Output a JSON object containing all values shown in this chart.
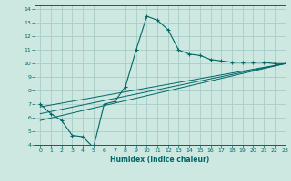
{
  "xlabel": "Humidex (Indice chaleur)",
  "ylabel": "",
  "bg_color": "#cce8e0",
  "grid_color": "#a8ccc8",
  "line_color": "#006666",
  "xlim": [
    -0.5,
    23
  ],
  "ylim": [
    4,
    14.3
  ],
  "xticks": [
    0,
    1,
    2,
    3,
    4,
    5,
    6,
    7,
    8,
    9,
    10,
    11,
    12,
    13,
    14,
    15,
    16,
    17,
    18,
    19,
    20,
    21,
    22,
    23
  ],
  "yticks": [
    4,
    5,
    6,
    7,
    8,
    9,
    10,
    11,
    12,
    13,
    14
  ],
  "line1_x": [
    0,
    1,
    2,
    3,
    4,
    5,
    6,
    7,
    8,
    9,
    10,
    11,
    12,
    13,
    14,
    15,
    16,
    17,
    18,
    19,
    20,
    21,
    22,
    23
  ],
  "line1_y": [
    7.0,
    6.3,
    5.8,
    4.7,
    4.6,
    3.8,
    7.0,
    7.2,
    8.3,
    11.0,
    13.5,
    13.2,
    12.5,
    11.0,
    10.7,
    10.6,
    10.3,
    10.2,
    10.1,
    10.1,
    10.1,
    10.1,
    10.0,
    10.0
  ],
  "line2_x": [
    0,
    23
  ],
  "line2_y": [
    5.8,
    10.0
  ],
  "line3_x": [
    0,
    23
  ],
  "line3_y": [
    6.3,
    10.0
  ],
  "line4_x": [
    0,
    23
  ],
  "line4_y": [
    6.8,
    10.0
  ]
}
